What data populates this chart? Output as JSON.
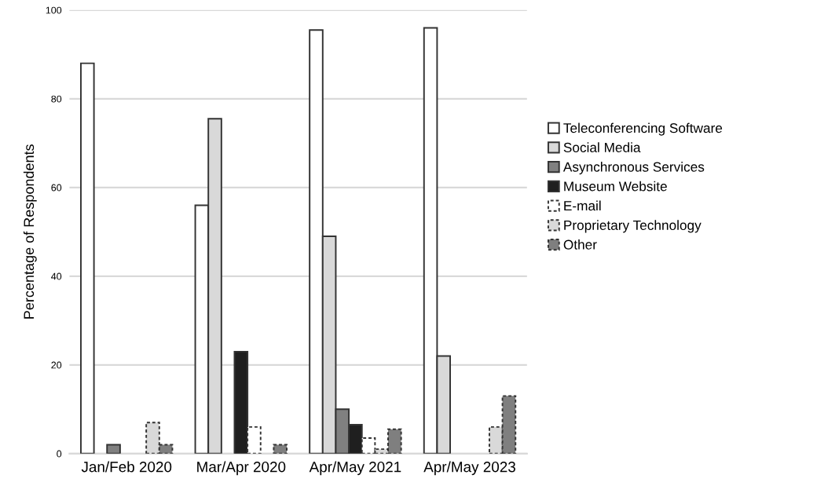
{
  "chart_data": {
    "type": "bar",
    "ylabel": "Percentage of Respondents",
    "categories": [
      "Jan/Feb 2020",
      "Mar/Apr 2020",
      "Apr/May 2021",
      "Apr/May 2023"
    ],
    "series": [
      {
        "name": "Teleconferencing Software",
        "color": "#ffffff",
        "values": [
          88,
          56,
          95.5,
          96
        ]
      },
      {
        "name": "Social Media",
        "color": "#d9d9d9",
        "values": [
          0,
          75.5,
          49,
          22
        ]
      },
      {
        "name": "Asynchronous Services",
        "color": "#808080",
        "values": [
          2,
          0,
          10,
          0
        ]
      },
      {
        "name": "Museum Website",
        "color": "#1f1f1f",
        "values": [
          0,
          23,
          6.5,
          0
        ]
      },
      {
        "name": "E-mail",
        "color": "#ffffff",
        "line_style": "dashed",
        "values": [
          0,
          6,
          3.5,
          0
        ]
      },
      {
        "name": "Proprietary Technology",
        "color": "#d9d9d9",
        "line_style": "dashed",
        "values": [
          7,
          0,
          1,
          6
        ]
      },
      {
        "name": "Other",
        "color": "#7f7f7f",
        "line_style": "dashed",
        "values": [
          2,
          2,
          5.5,
          13
        ]
      }
    ],
    "ylim": [
      0,
      100
    ],
    "yticks": [
      0,
      20,
      40,
      60,
      80,
      100
    ],
    "grid": "y",
    "legend": "right"
  }
}
